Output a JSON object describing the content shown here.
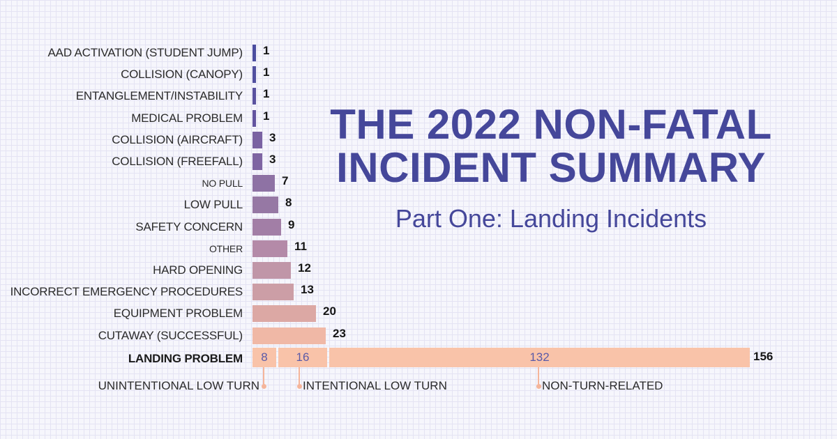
{
  "title": {
    "line1": "THE 2022 NON-FATAL",
    "line2": "INCIDENT SUMMARY",
    "subtitle": "Part One: Landing Incidents"
  },
  "chart_data": {
    "type": "bar",
    "orientation": "horizontal",
    "title": "THE 2022 NON-FATAL INCIDENT SUMMARY",
    "subtitle": "Part One: Landing Incidents",
    "xlabel": "",
    "ylabel": "",
    "grid": true,
    "categories": [
      "AAD ACTIVATION (STUDENT JUMP)",
      "COLLISION (CANOPY)",
      "ENTANGLEMENT/INSTABILITY",
      "MEDICAL PROBLEM",
      "COLLISION (AIRCRAFT)",
      "COLLISION (FREEFALL)",
      "NO PULL",
      "LOW PULL",
      "SAFETY CONCERN",
      "OTHER",
      "HARD OPENING",
      "INCORRECT EMERGENCY PROCEDURES",
      "EQUIPMENT PROBLEM",
      "CUTAWAY (SUCCESSFUL)",
      "LANDING PROBLEM"
    ],
    "values": [
      1,
      1,
      1,
      1,
      3,
      3,
      7,
      8,
      9,
      11,
      12,
      13,
      20,
      23,
      156
    ],
    "bar_colors": [
      "#4b4da0",
      "#5250a0",
      "#5a52a0",
      "#6354a0",
      "#7a62a2",
      "#7e64a2",
      "#8e72a4",
      "#9678a4",
      "#a27ea6",
      "#b48aa8",
      "#c096a8",
      "#cc9ea6",
      "#dca8a4",
      "#f0b8a6",
      "#f9c3a9"
    ],
    "landing_breakdown": {
      "total": 156,
      "segments": [
        {
          "label": "UNINTENTIONAL LOW TURN",
          "value": 8
        },
        {
          "label": "INTENTIONAL LOW TURN",
          "value": 16
        },
        {
          "label": "NON-TURN-RELATED",
          "value": 132
        }
      ]
    },
    "xlim": [
      0,
      156
    ]
  }
}
